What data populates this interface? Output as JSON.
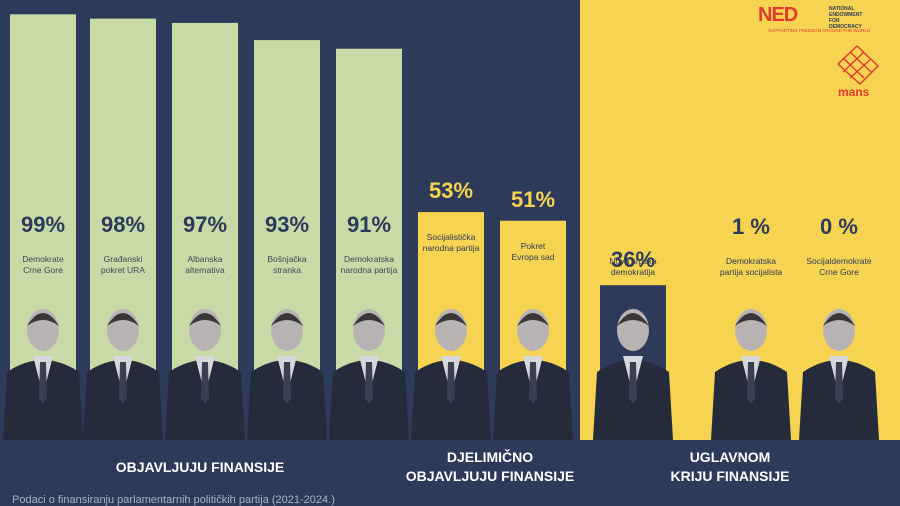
{
  "chart_data": {
    "type": "bar",
    "ylim": [
      0,
      100
    ],
    "categories": [
      "Demokrate Crne Gore",
      "Građanski pokret URA",
      "Albanska alternativa",
      "Bošnjačka stranka",
      "Demokratska narodna partija",
      "Socijalistička narodna partija",
      "Pokret Evropa sad",
      "Nova srpska demokratija",
      "Demokratska partija socijalista",
      "Socijaldemokrate Crne Gore"
    ],
    "category_lines": [
      [
        "Demokrate",
        "Crne Gore"
      ],
      [
        "Građanski",
        "pokret URA"
      ],
      [
        "Albanska",
        "alternativa"
      ],
      [
        "Bošnjačka",
        "stranka"
      ],
      [
        "Demokratska",
        "narodna partija"
      ],
      [
        "Socijalistička",
        "narodna partija"
      ],
      [
        "Pokret",
        "Evropa sad"
      ],
      [
        "Nova srpska",
        "demokratija"
      ],
      [
        "Demokratska",
        "partija socijalista"
      ],
      [
        "Socijaldemokrate",
        "Crne Gore"
      ]
    ],
    "values": [
      99,
      98,
      97,
      93,
      91,
      53,
      51,
      36,
      1,
      0
    ],
    "value_labels": [
      "99%",
      "98%",
      "97%",
      "93%",
      "91%",
      "53%",
      "51%",
      "36%",
      "1 %",
      "0 %"
    ],
    "groups": [
      {
        "lines": [
          "OBJAVLJUJU FINANSIJE"
        ],
        "indices": [
          0,
          1,
          2,
          3,
          4
        ]
      },
      {
        "lines": [
          "DJELIMIČNO",
          "OBJAVLJUJU FINANSIJE"
        ],
        "indices": [
          5,
          6
        ]
      },
      {
        "lines": [
          "UGLAVNOM",
          "KRIJU FINANSIJE"
        ],
        "indices": [
          7,
          8,
          9
        ]
      }
    ],
    "colors": {
      "full": "#c8dba7",
      "partial": "#f6d451",
      "hidden": "#2e3a5a",
      "background": "#2e3a5a",
      "accent": "#f6d451"
    }
  },
  "footer": "Podaci o finansiranju parlamentarnih političkih partija (2021-2024.)",
  "logos": {
    "ned": {
      "word": "NED",
      "name_lines": [
        "NATIONAL",
        "ENDOWMENT",
        "FOR",
        "DEMOCRACY"
      ],
      "tagline": "SUPPORTING FREEDOM AROUND THE WORLD"
    },
    "mans": {
      "word": "mans"
    }
  }
}
